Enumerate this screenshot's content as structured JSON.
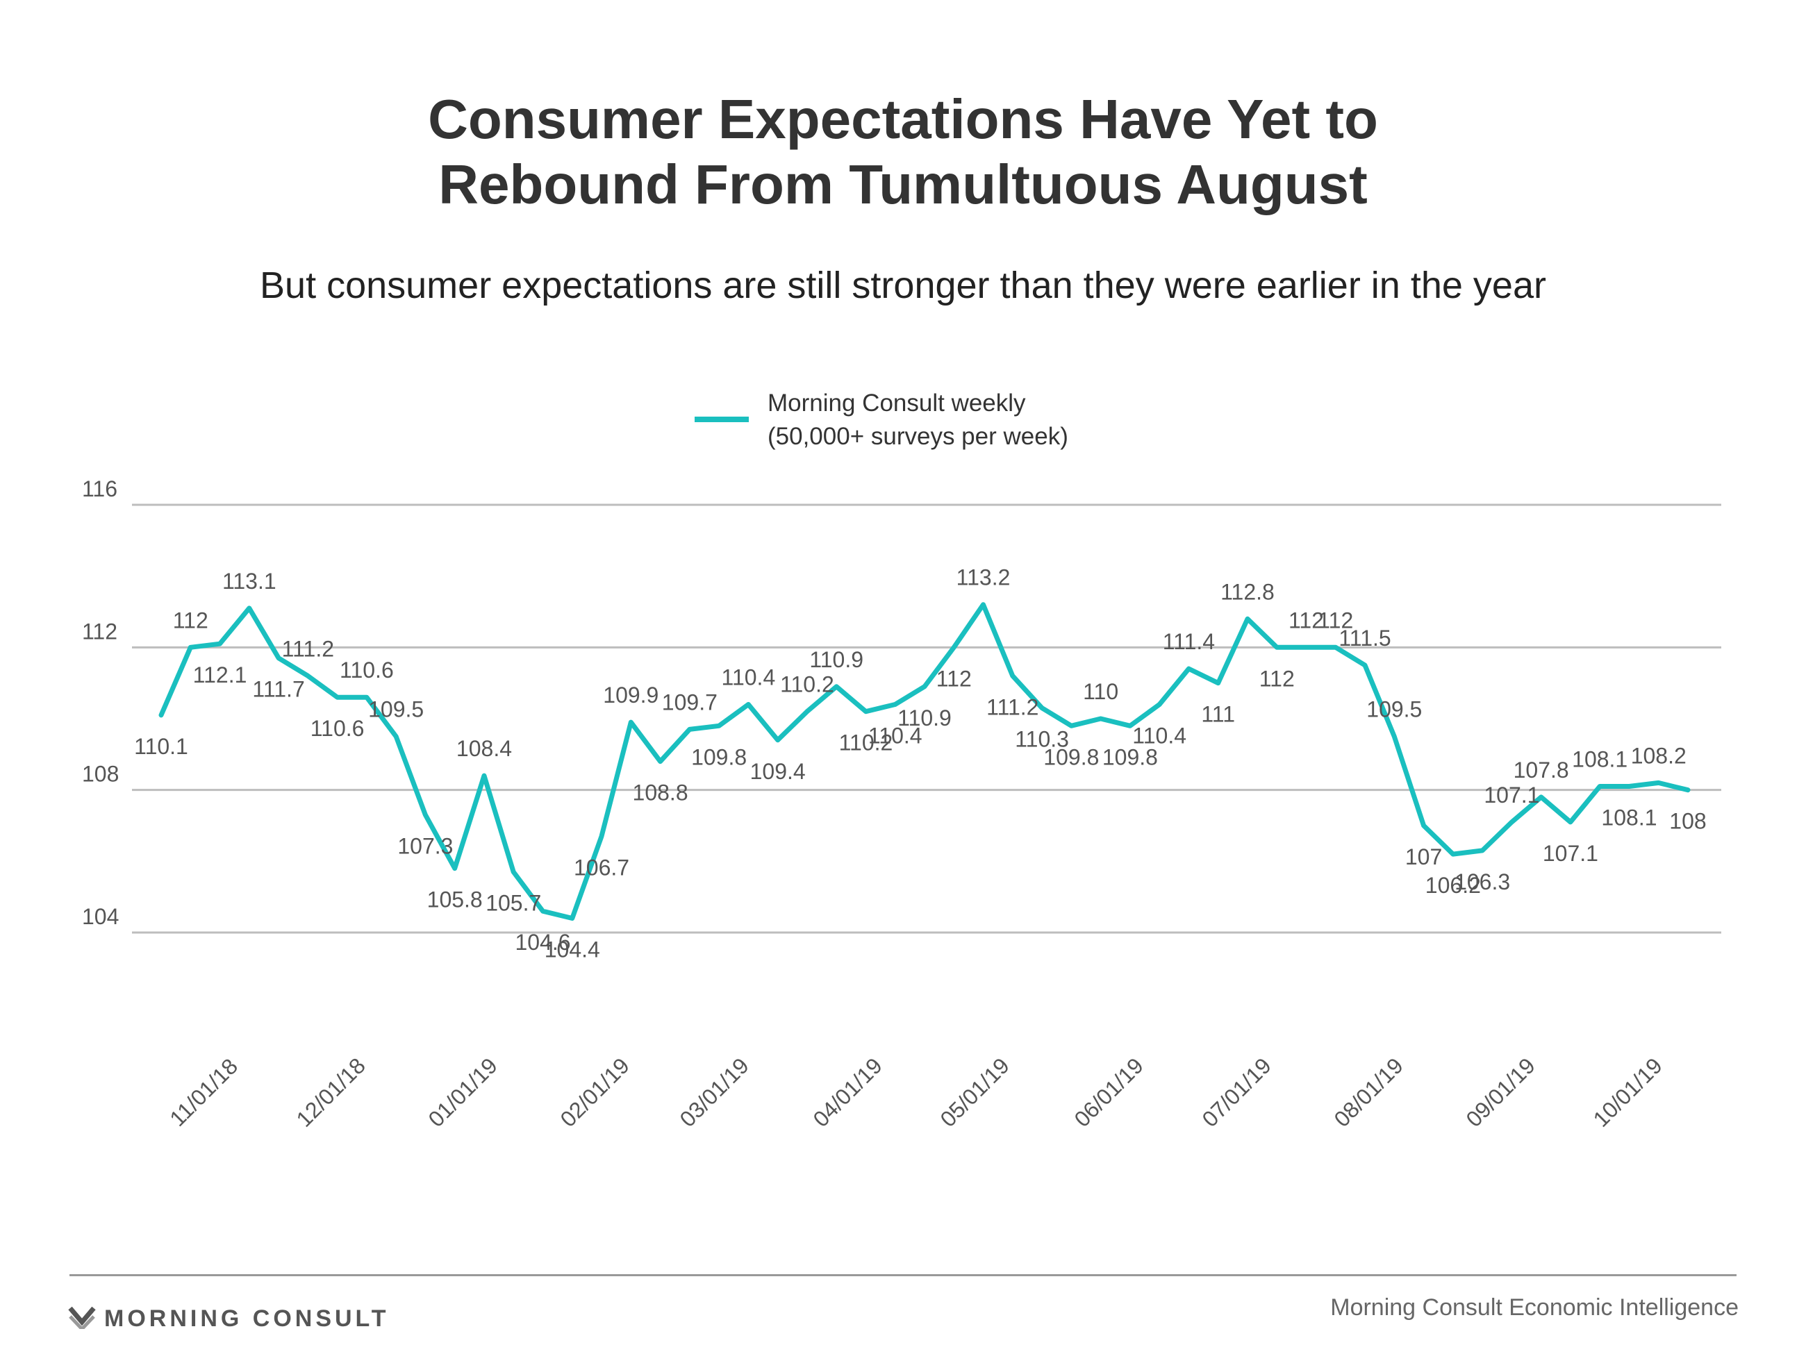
{
  "header": {
    "title_line1": "Consumer Expectations Have Yet to",
    "title_line2": "Rebound From Tumultuous August",
    "subtitle": "But consumer expectations are still stronger than they were earlier in the year"
  },
  "footer": {
    "brand": "MORNING CONSULT",
    "source": "Morning Consult Economic Intelligence",
    "logo_icon": "morning-consult-chevron-icon"
  },
  "colors": {
    "line": "#1ABFBF",
    "grid": "#BDBDBD",
    "text": "#333333",
    "label": "#555555"
  },
  "chart_data": {
    "type": "line",
    "title": "Consumer Expectations Have Yet to Rebound From Tumultuous August",
    "subtitle": "But consumer expectations are still stronger than they were earlier in the year",
    "legend": {
      "placement": "top-center",
      "lines": [
        "Morning Consult weekly",
        "(50,000+ surveys per week)"
      ]
    },
    "x_tick_labels": [
      "11/01/18",
      "12/01/18",
      "01/01/19",
      "02/01/19",
      "03/01/19",
      "04/01/19",
      "05/01/19",
      "06/01/19",
      "07/01/19",
      "08/01/19",
      "09/01/19",
      "10/01/19"
    ],
    "ylim": [
      104,
      116
    ],
    "yticks": [
      104,
      108,
      112,
      116
    ],
    "grid": true,
    "series": [
      {
        "name": "Morning Consult weekly (50,000+ surveys per week)",
        "values": [
          110.1,
          112,
          112.1,
          113.1,
          111.7,
          111.2,
          110.6,
          110.6,
          109.5,
          107.3,
          105.8,
          108.4,
          105.7,
          104.6,
          104.4,
          106.7,
          109.9,
          108.8,
          109.7,
          109.8,
          110.4,
          109.4,
          110.2,
          110.9,
          110.2,
          110.4,
          110.9,
          112,
          113.2,
          111.2,
          110.3,
          109.8,
          110,
          109.8,
          110.4,
          111.4,
          111,
          112.8,
          112,
          112,
          112,
          111.5,
          109.5,
          107,
          106.2,
          106.3,
          107.1,
          107.8,
          107.1,
          108.1,
          108.1,
          108.2,
          108
        ],
        "labels": [
          "110.1",
          "112",
          "112.1",
          "113.1",
          "111.7",
          "111.2",
          "110.6",
          "110.6",
          "109.5",
          "107.3",
          "105.8",
          "108.4",
          "105.7",
          "104.6",
          "104.4",
          "106.7",
          "109.9",
          "108.8",
          "109.7",
          "109.8",
          "110.4",
          "109.4",
          "110.2",
          "110.9",
          "110.2",
          "110.4",
          "110.9",
          "112",
          "113.2",
          "111.2",
          "110.3",
          "109.8",
          "110",
          "109.8",
          "110.4",
          "111.4",
          "111",
          "112.8",
          "112",
          "112",
          "112",
          "111.5",
          "109.5",
          "107",
          "106.2",
          "106.3",
          "107.1",
          "107.8",
          "107.1",
          "108.1",
          "108.1",
          "108.2",
          "108"
        ]
      }
    ]
  }
}
